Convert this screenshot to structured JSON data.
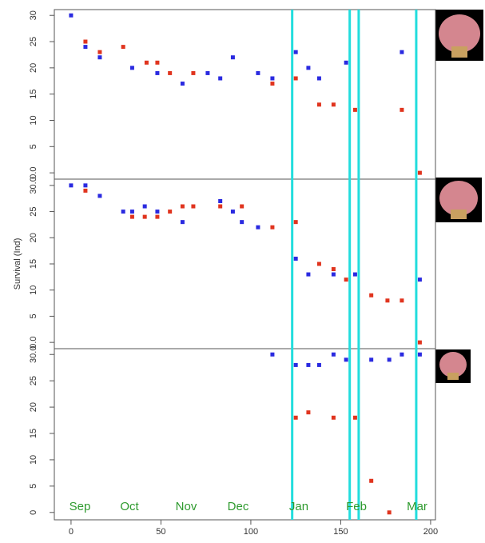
{
  "ylabel": "Survival (Ind)",
  "months": [
    "Sep",
    "Oct",
    "Nov",
    "Dec",
    "Jan",
    "Feb",
    "Mar"
  ],
  "vlines": [
    123,
    155,
    160,
    192
  ],
  "vline_color": "#22dddd",
  "chart_data": [
    {
      "type": "scatter",
      "xlim": [
        -9.3,
        202.7
      ],
      "ylim": [
        -1.2,
        31.1
      ],
      "yticks": [
        {
          "value": 0,
          "label": "0.0"
        },
        5,
        10,
        15,
        20,
        25,
        30
      ],
      "series": [
        {
          "color": "#2a2ae0",
          "x": [
            0,
            8,
            16,
            34,
            48,
            62,
            76,
            83,
            90,
            104,
            112,
            125,
            132,
            138,
            153,
            184
          ],
          "values": [
            30,
            24,
            22,
            20,
            19,
            17,
            19,
            18,
            22,
            19,
            18,
            23,
            20,
            18,
            21,
            23
          ]
        },
        {
          "color": "#e0341e",
          "x": [
            8,
            16,
            29,
            42,
            48,
            55,
            68,
            112,
            125,
            138,
            146,
            158,
            184,
            194
          ],
          "values": [
            25,
            23,
            24,
            21,
            21,
            19,
            19,
            17,
            18,
            13,
            13,
            12,
            12,
            0
          ]
        }
      ]
    },
    {
      "type": "scatter",
      "xlim": [
        -9.3,
        202.7
      ],
      "ylim": [
        -1.2,
        31.2
      ],
      "yticks": [
        {
          "value": 0,
          "label": "0.0"
        },
        5,
        10,
        15,
        20,
        25,
        {
          "value": 30,
          "label": "30.0"
        }
      ],
      "series": [
        {
          "color": "#2a2ae0",
          "x": [
            0,
            8,
            16,
            29,
            34,
            41,
            48,
            62,
            83,
            90,
            95,
            104,
            125,
            132,
            146,
            158,
            194
          ],
          "values": [
            30,
            30,
            28,
            25,
            25,
            26,
            25,
            23,
            27,
            25,
            23,
            22,
            16,
            13,
            13,
            13,
            12
          ]
        },
        {
          "color": "#e0341e",
          "x": [
            8,
            34,
            41,
            48,
            55,
            62,
            68,
            83,
            95,
            112,
            125,
            138,
            146,
            153,
            167,
            176,
            184,
            194
          ],
          "values": [
            29,
            24,
            24,
            24,
            25,
            26,
            26,
            26,
            26,
            22,
            23,
            15,
            14,
            12,
            9,
            8,
            8,
            0
          ]
        }
      ]
    },
    {
      "type": "scatter",
      "xlim": [
        -9.3,
        202.7
      ],
      "ylim": [
        -1.4,
        31.1
      ],
      "yticks": [
        0,
        5,
        10,
        15,
        20,
        25,
        {
          "value": 30,
          "label": "30.0"
        }
      ],
      "xticks": [
        0,
        50,
        100,
        150,
        200
      ],
      "series": [
        {
          "color": "#2a2ae0",
          "x": [
            112,
            125,
            132,
            138,
            146,
            153,
            167,
            177,
            184,
            194
          ],
          "values": [
            30,
            28,
            28,
            28,
            30,
            29,
            29,
            29,
            30,
            30
          ]
        },
        {
          "color": "#e0341e",
          "x": [
            125,
            132,
            146,
            158,
            167,
            177
          ],
          "values": [
            18,
            19,
            18,
            18,
            6,
            0
          ]
        }
      ]
    }
  ]
}
